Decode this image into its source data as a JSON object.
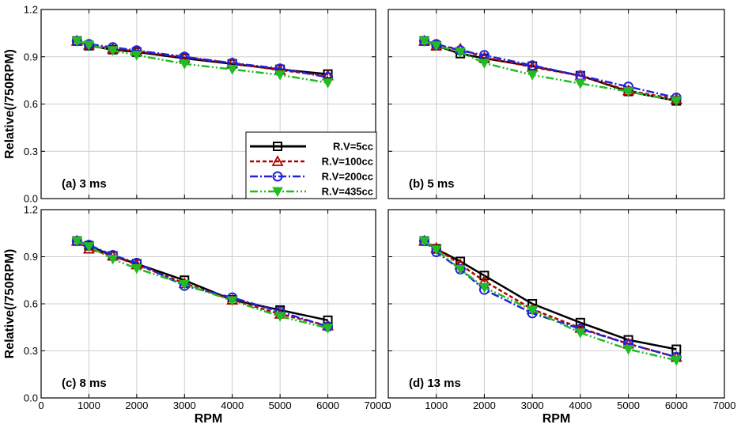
{
  "chart_data": {
    "type": "line",
    "xlabel": "RPM",
    "ylabel": "Relative(/750RPM)",
    "xlim": [
      0,
      7000
    ],
    "ylim": [
      0,
      1.2
    ],
    "xticks": [
      "0",
      "1000",
      "2000",
      "3000",
      "4000",
      "5000",
      "6000",
      "7000"
    ],
    "yticks": [
      "0.0",
      "0.3",
      "0.6",
      "0.9",
      "1.2"
    ],
    "x": [
      750,
      1000,
      1500,
      2000,
      3000,
      4000,
      5000,
      6000
    ],
    "legend": {
      "location": "inside panel (a), bottom-right",
      "entries": [
        "R.V=5cc",
        "R.V=100cc",
        "R.V=200cc",
        "R.V=435cc"
      ]
    },
    "series_styles": [
      {
        "name": "R.V=5cc",
        "color": "#000000",
        "marker": "square",
        "dash": "solid"
      },
      {
        "name": "R.V=100cc",
        "color": "#b00000",
        "marker": "triangle-up",
        "dash": "dashed"
      },
      {
        "name": "R.V=200cc",
        "color": "#2222dd",
        "marker": "circle",
        "dash": "dashdot"
      },
      {
        "name": "R.V=435cc",
        "color": "#22bb22",
        "marker": "triangle-down",
        "dash": "dashdotdot"
      }
    ],
    "panels": [
      {
        "label": "(a) 3 ms",
        "series": [
          {
            "name": "R.V=5cc",
            "values": [
              1.0,
              0.97,
              0.945,
              0.93,
              0.89,
              0.855,
              0.82,
              0.79
            ]
          },
          {
            "name": "R.V=100cc",
            "values": [
              1.0,
              0.975,
              0.95,
              0.935,
              0.895,
              0.86,
              0.815,
              0.78
            ]
          },
          {
            "name": "R.V=200cc",
            "values": [
              1.0,
              0.98,
              0.96,
              0.94,
              0.9,
              0.86,
              0.825,
              0.77
            ]
          },
          {
            "name": "R.V=435cc",
            "values": [
              1.0,
              0.975,
              0.94,
              0.91,
              0.855,
              0.82,
              0.785,
              0.735
            ]
          }
        ]
      },
      {
        "label": "(b) 5 ms",
        "series": [
          {
            "name": "R.V=5cc",
            "values": [
              1.0,
              0.97,
              0.92,
              0.89,
              0.84,
              0.78,
              0.68,
              0.62
            ]
          },
          {
            "name": "R.V=100cc",
            "values": [
              1.0,
              0.97,
              0.95,
              0.895,
              0.835,
              0.78,
              0.685,
              0.63
            ]
          },
          {
            "name": "R.V=200cc",
            "values": [
              1.0,
              0.98,
              0.94,
              0.91,
              0.845,
              0.78,
              0.71,
              0.64
            ]
          },
          {
            "name": "R.V=435cc",
            "values": [
              1.0,
              0.97,
              0.93,
              0.86,
              0.785,
              0.73,
              0.68,
              0.62
            ]
          }
        ]
      },
      {
        "label": "(c) 8 ms",
        "series": [
          {
            "name": "R.V=5cc",
            "values": [
              1.0,
              0.97,
              0.905,
              0.855,
              0.75,
              0.625,
              0.56,
              0.495
            ]
          },
          {
            "name": "R.V=100cc",
            "values": [
              1.0,
              0.95,
              0.905,
              0.85,
              0.73,
              0.625,
              0.535,
              0.46
            ]
          },
          {
            "name": "R.V=200cc",
            "values": [
              1.0,
              0.975,
              0.91,
              0.86,
              0.715,
              0.64,
              0.55,
              0.455
            ]
          },
          {
            "name": "R.V=435cc",
            "values": [
              1.0,
              0.965,
              0.885,
              0.825,
              0.725,
              0.62,
              0.52,
              0.445
            ]
          }
        ]
      },
      {
        "label": "(d) 13 ms",
        "series": [
          {
            "name": "R.V=5cc",
            "values": [
              1.0,
              0.95,
              0.87,
              0.78,
              0.6,
              0.48,
              0.37,
              0.31
            ]
          },
          {
            "name": "R.V=100cc",
            "values": [
              1.0,
              0.955,
              0.85,
              0.745,
              0.565,
              0.445,
              0.345,
              0.26
            ]
          },
          {
            "name": "R.V=200cc",
            "values": [
              1.0,
              0.93,
              0.82,
              0.69,
              0.54,
              0.44,
              0.345,
              0.26
            ]
          },
          {
            "name": "R.V=435cc",
            "values": [
              1.0,
              0.945,
              0.82,
              0.705,
              0.56,
              0.415,
              0.31,
              0.24
            ]
          }
        ]
      }
    ]
  }
}
